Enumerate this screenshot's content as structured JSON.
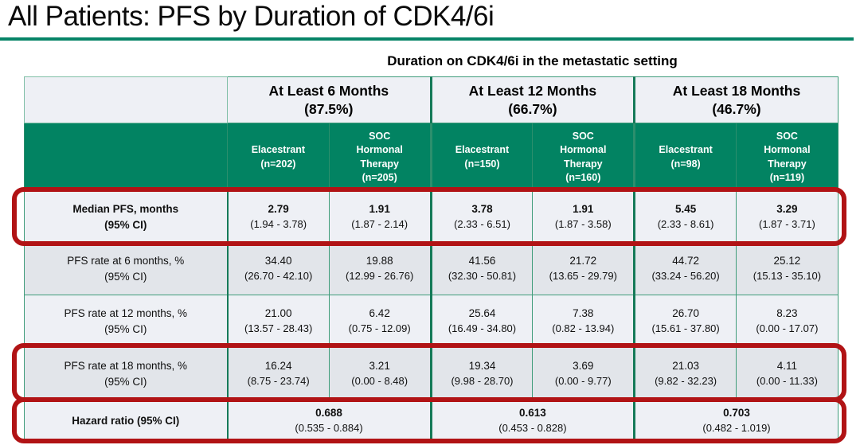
{
  "colors": {
    "accent_green": "#028362",
    "border_green": "#3f9c7a",
    "border_green_dark": "#157a58",
    "highlight_red": "#b11315",
    "band_light": "#eef0f5",
    "band_dark": "#e2e5ea"
  },
  "chart_data": {
    "type": "table",
    "title": "All Patients: PFS by Duration of CDK4/6i",
    "caption": "Duration on CDK4/6i in the metastatic setting",
    "column_groups": [
      {
        "label": "At Least 6 Months",
        "pct": "(87.5%)"
      },
      {
        "label": "At Least 12 Months",
        "pct": "(66.7%)"
      },
      {
        "label": "At Least 18 Months",
        "pct": "(46.7%)"
      }
    ],
    "columns": [
      "Elacestrant\n(n=202)",
      "SOC\nHormonal\nTherapy\n(n=205)",
      "Elacestrant\n(n=150)",
      "SOC\nHormonal\nTherapy\n(n=160)",
      "Elacestrant\n(n=98)",
      "SOC\nHormonal\nTherapy\n(n=119)"
    ],
    "rows": [
      {
        "label": "Median PFS, months\n(95% CI)",
        "highlighted": true,
        "cells": [
          {
            "value": "2.79",
            "ci": "(1.94 - 3.78)"
          },
          {
            "value": "1.91",
            "ci": "(1.87 - 2.14)"
          },
          {
            "value": "3.78",
            "ci": "(2.33 - 6.51)"
          },
          {
            "value": "1.91",
            "ci": "(1.87 - 3.58)"
          },
          {
            "value": "5.45",
            "ci": "(2.33 - 8.61)"
          },
          {
            "value": "3.29",
            "ci": "(1.87 - 3.71)"
          }
        ]
      },
      {
        "label": "PFS rate at 6 months, %\n(95% CI)",
        "highlighted": false,
        "cells": [
          {
            "value": "34.40",
            "ci": "(26.70 - 42.10)"
          },
          {
            "value": "19.88",
            "ci": "(12.99 - 26.76)"
          },
          {
            "value": "41.56",
            "ci": "(32.30 - 50.81)"
          },
          {
            "value": "21.72",
            "ci": "(13.65 - 29.79)"
          },
          {
            "value": "44.72",
            "ci": "(33.24 - 56.20)"
          },
          {
            "value": "25.12",
            "ci": "(15.13 - 35.10)"
          }
        ]
      },
      {
        "label": "PFS rate at 12 months, %\n(95% CI)",
        "highlighted": false,
        "cells": [
          {
            "value": "21.00",
            "ci": "(13.57 - 28.43)"
          },
          {
            "value": "6.42",
            "ci": "(0.75 - 12.09)"
          },
          {
            "value": "25.64",
            "ci": "(16.49 - 34.80)"
          },
          {
            "value": "7.38",
            "ci": "(0.82 - 13.94)"
          },
          {
            "value": "26.70",
            "ci": "(15.61 - 37.80)"
          },
          {
            "value": "8.23",
            "ci": "(0.00 - 17.07)"
          }
        ]
      },
      {
        "label": "PFS rate at 18 months, %\n(95% CI)",
        "highlighted": true,
        "cells": [
          {
            "value": "16.24",
            "ci": "(8.75 - 23.74)"
          },
          {
            "value": "3.21",
            "ci": "(0.00 - 8.48)"
          },
          {
            "value": "19.34",
            "ci": "(9.98 - 28.70)"
          },
          {
            "value": "3.69",
            "ci": "(0.00 - 9.77)"
          },
          {
            "value": "21.03",
            "ci": "(9.82 - 32.23)"
          },
          {
            "value": "4.11",
            "ci": "(0.00 - 11.33)"
          }
        ]
      }
    ],
    "hazard_row": {
      "label": "Hazard ratio (95% CI)",
      "highlighted": true,
      "cells": [
        {
          "value": "0.688",
          "ci": "(0.535 - 0.884)"
        },
        {
          "value": "0.613",
          "ci": "(0.453 - 0.828)"
        },
        {
          "value": "0.703",
          "ci": "(0.482 - 1.019)"
        }
      ]
    }
  }
}
